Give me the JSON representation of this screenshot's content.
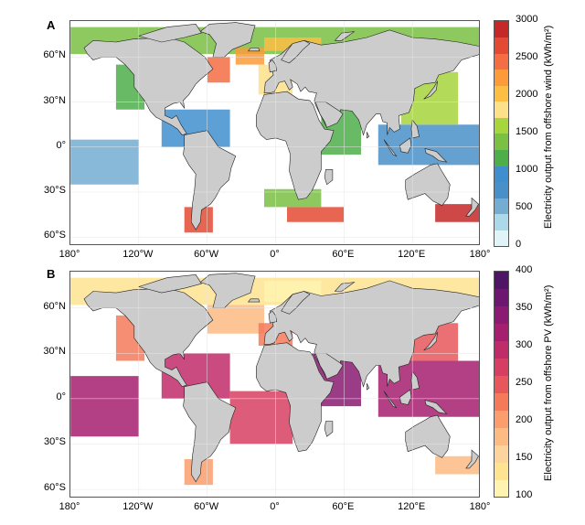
{
  "panels": [
    {
      "id": "A",
      "letter": "A",
      "colorbar": {
        "title": "Electricity output from offshore wind (kWh/m²)",
        "min": 0,
        "max": 3000,
        "ticks": [
          "3000",
          "2500",
          "2000",
          "1500",
          "1000",
          "500",
          "0"
        ],
        "colors": [
          "#e0f3f8",
          "#abd9e9",
          "#74add1",
          "#4a90c8",
          "#3f8fcf",
          "#4dae4a",
          "#7ac043",
          "#a6d53c",
          "#fee08b",
          "#fdbe44",
          "#fd9b3a",
          "#f46d43",
          "#e34a33",
          "#c62828"
        ]
      },
      "axes": {
        "lat_labels": [
          "60°N",
          "30°N",
          "0°",
          "30°S",
          "60°S"
        ],
        "lon_labels": [
          "180°",
          "120°W",
          "60°W",
          "0°",
          "60°E",
          "120°E",
          "180°"
        ]
      }
    },
    {
      "id": "B",
      "letter": "B",
      "colorbar": {
        "title": "Electricity output from offshore PV (kWh/m²)",
        "min": 100,
        "max": 400,
        "ticks": [
          "400",
          "350",
          "300",
          "250",
          "200",
          "150",
          "100"
        ],
        "colors": [
          "#fff3b0",
          "#fee391",
          "#fdd49e",
          "#fdbb84",
          "#fc9d6d",
          "#f47a5a",
          "#e8575b",
          "#d63f62",
          "#c02c6a",
          "#a61f6f",
          "#8a1a72",
          "#6d1770",
          "#4e1466"
        ]
      },
      "axes": {
        "lat_labels": [
          "60°N",
          "30°N",
          "0°",
          "30°S",
          "60°S"
        ],
        "lon_labels": [
          "180°",
          "120°W",
          "60°W",
          "0°",
          "60°E",
          "120°E",
          "180°"
        ]
      }
    }
  ]
}
